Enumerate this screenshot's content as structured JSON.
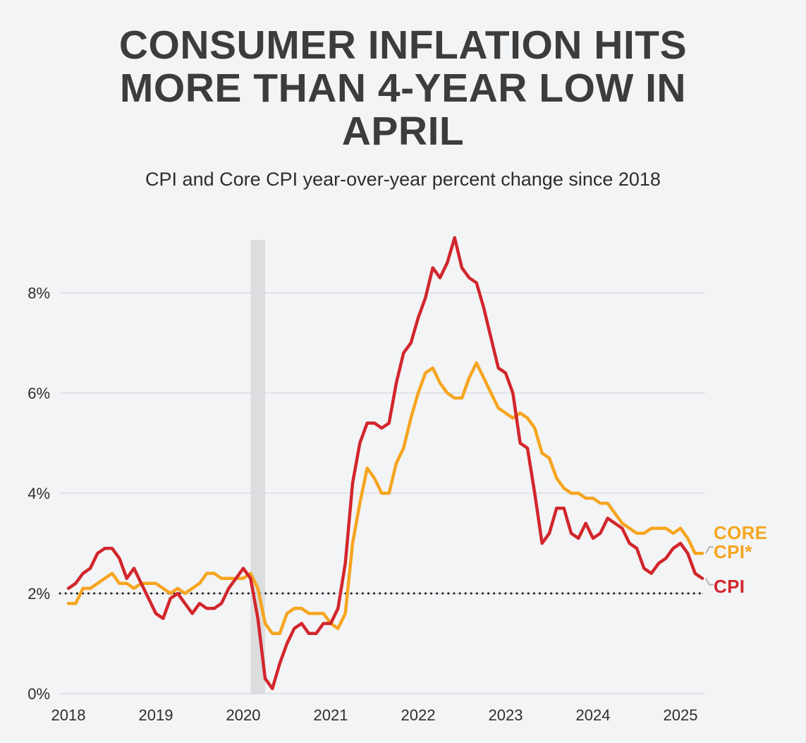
{
  "header": {
    "title": "CONSUMER INFLATION HITS MORE THAN 4-YEAR LOW IN APRIL",
    "subtitle": "CPI and Core CPI year-over-year percent change since 2018"
  },
  "legend": {
    "core_line1": "CORE",
    "core_line2": "CPI*",
    "cpi": "CPI"
  },
  "chart_data": {
    "type": "line",
    "title": "CPI and Core CPI year-over-year percent change since 2018",
    "x_start": "2018-01",
    "x_end": "2025-04",
    "x_frequency": "monthly",
    "xtick_labels": [
      "2018",
      "2019",
      "2020",
      "2021",
      "2022",
      "2023",
      "2024",
      "2025"
    ],
    "yticks": [
      0,
      2,
      4,
      6,
      8
    ],
    "ytick_labels": [
      "0%",
      "2%",
      "4%",
      "6%",
      "8%"
    ],
    "ylim": [
      0,
      9.2
    ],
    "grid": "horizontal",
    "legend_position": "right",
    "reference_line": {
      "value": 2,
      "style": "dotted",
      "color": "#1a1a1a"
    },
    "recession_band": {
      "start": "2020-02",
      "end": "2020-04",
      "color": "#dcdddf"
    },
    "series": [
      {
        "name": "CPI",
        "color": "#d2262c",
        "values": [
          2.1,
          2.2,
          2.4,
          2.5,
          2.8,
          2.9,
          2.9,
          2.7,
          2.3,
          2.5,
          2.2,
          1.9,
          1.6,
          1.5,
          1.9,
          2.0,
          1.8,
          1.6,
          1.8,
          1.7,
          1.7,
          1.8,
          2.1,
          2.3,
          2.5,
          2.3,
          1.5,
          0.3,
          0.1,
          0.6,
          1.0,
          1.3,
          1.4,
          1.2,
          1.2,
          1.4,
          1.4,
          1.7,
          2.6,
          4.2,
          5.0,
          5.4,
          5.4,
          5.3,
          5.4,
          6.2,
          6.8,
          7.0,
          7.5,
          7.9,
          8.5,
          8.3,
          8.6,
          9.1,
          8.5,
          8.3,
          8.2,
          7.7,
          7.1,
          6.5,
          6.4,
          6.0,
          5.0,
          4.9,
          4.0,
          3.0,
          3.2,
          3.7,
          3.7,
          3.2,
          3.1,
          3.4,
          3.1,
          3.2,
          3.5,
          3.4,
          3.3,
          3.0,
          2.9,
          2.5,
          2.4,
          2.6,
          2.7,
          2.9,
          3.0,
          2.8,
          2.4,
          2.3
        ]
      },
      {
        "name": "Core CPI",
        "color": "#f6a51f",
        "values": [
          1.8,
          1.8,
          2.1,
          2.1,
          2.2,
          2.3,
          2.4,
          2.2,
          2.2,
          2.1,
          2.2,
          2.2,
          2.2,
          2.1,
          2.0,
          2.1,
          2.0,
          2.1,
          2.2,
          2.4,
          2.4,
          2.3,
          2.3,
          2.3,
          2.3,
          2.4,
          2.1,
          1.4,
          1.2,
          1.2,
          1.6,
          1.7,
          1.7,
          1.6,
          1.6,
          1.6,
          1.4,
          1.3,
          1.6,
          3.0,
          3.8,
          4.5,
          4.3,
          4.0,
          4.0,
          4.6,
          4.9,
          5.5,
          6.0,
          6.4,
          6.5,
          6.2,
          6.0,
          5.9,
          5.9,
          6.3,
          6.6,
          6.3,
          6.0,
          5.7,
          5.6,
          5.5,
          5.6,
          5.5,
          5.3,
          4.8,
          4.7,
          4.3,
          4.1,
          4.0,
          4.0,
          3.9,
          3.9,
          3.8,
          3.8,
          3.6,
          3.4,
          3.3,
          3.2,
          3.2,
          3.3,
          3.3,
          3.3,
          3.2,
          3.3,
          3.1,
          2.8,
          2.8
        ]
      }
    ]
  }
}
